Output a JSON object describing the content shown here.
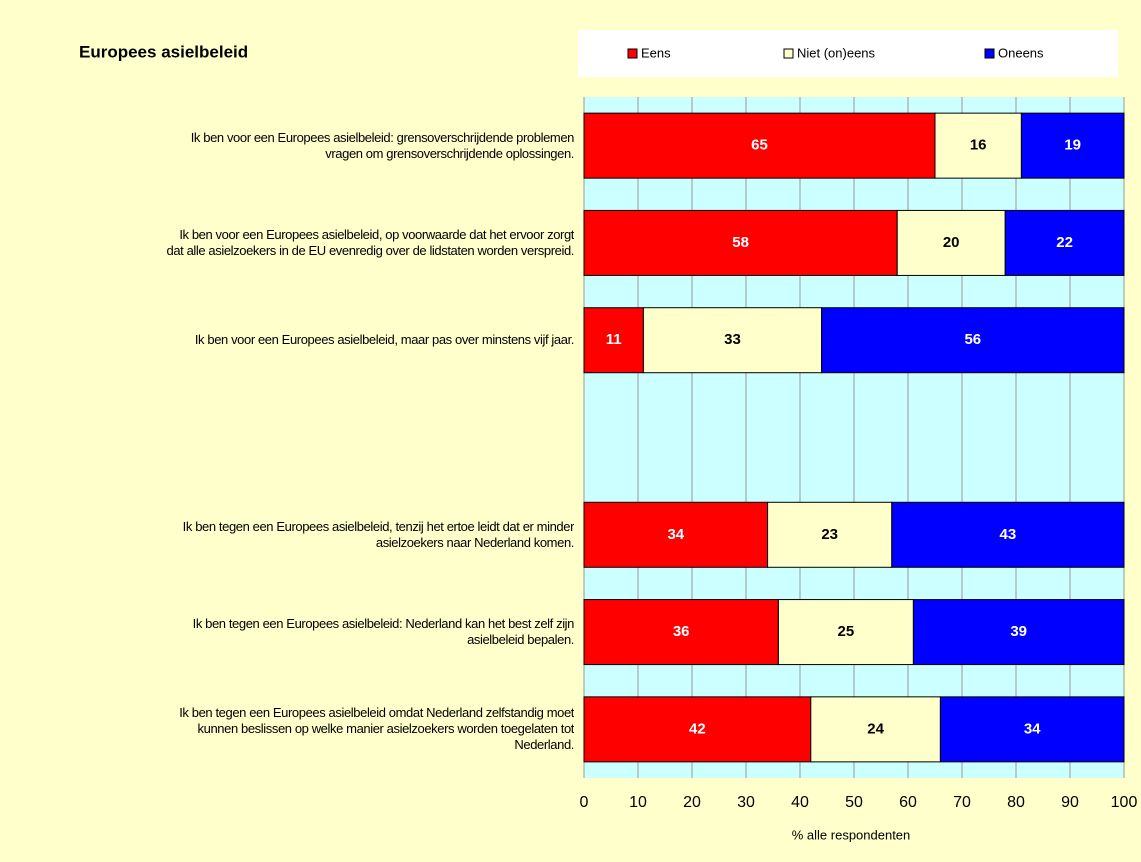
{
  "chart_data": {
    "type": "stacked-barh",
    "title": "Europees asielbeleid",
    "categories": [
      "Ik ben voor een Europees asielbeleid: grensoverschrijdende problemen\nvragen om grensoverschrijdende oplossingen.",
      "Ik ben voor een Europees asielbeleid, op voorwaarde dat het ervoor zorgt\ndat alle asielzoekers in de EU evenredig over de lidstaten worden verspreid.",
      "Ik ben voor een Europees asielbeleid, maar pas over minstens vijf jaar.",
      null,
      "Ik ben tegen een Europees asielbeleid, tenzij het ertoe leidt dat er minder\nasielzoekers naar Nederland komen.",
      "Ik ben tegen een Europees asielbeleid: Nederland kan het best zelf zijn\nasielbeleid bepalen.",
      "Ik ben tegen een Europees asielbeleid omdat Nederland zelfstandig moet\nkunnen beslissen op welke manier asielzoekers worden toegelaten tot\nNederland."
    ],
    "series": [
      {
        "name": "Eens",
        "color": "#ff0000",
        "values": [
          65,
          58,
          11,
          null,
          34,
          36,
          42
        ]
      },
      {
        "name": "Niet (on)eens",
        "color": "#ffffcc",
        "values": [
          16,
          20,
          33,
          null,
          23,
          25,
          24
        ]
      },
      {
        "name": "Oneens",
        "color": "#0000ff",
        "values": [
          19,
          22,
          56,
          null,
          43,
          39,
          34
        ]
      }
    ],
    "xlabel": "% alle respondenten",
    "xlim": [
      0,
      100
    ],
    "xticks": [
      0,
      10,
      20,
      30,
      40,
      50,
      60,
      70,
      80,
      90,
      100
    ],
    "grid": true,
    "legend": "top"
  }
}
